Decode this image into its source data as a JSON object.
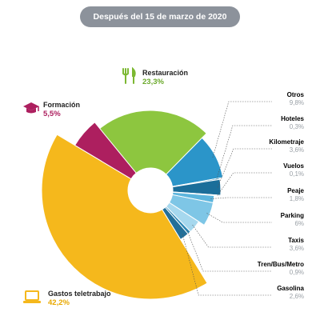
{
  "header": {
    "label": "Después del 15 de marzo de 2020",
    "color": "#8c929b"
  },
  "chart_data": {
    "type": "pie",
    "title": "Después del 15 de marzo de 2020",
    "slices": [
      {
        "name": "Restauración",
        "label": "23,3%",
        "value": 23.3,
        "color": "#8dc63f"
      },
      {
        "name": "Otros",
        "label": "9,8%",
        "value": 9.8,
        "color": "#2b95c9"
      },
      {
        "name": "Hoteles",
        "label": "0,3%",
        "value": 0.3,
        "color": "#1e7fb0"
      },
      {
        "name": "Kilometraje",
        "label": "3,6%",
        "value": 3.6,
        "color": "#1b6e9a"
      },
      {
        "name": "Vuelos",
        "label": "0,1%",
        "value": 0.1,
        "color": "#3aa0d2"
      },
      {
        "name": "Peaje",
        "label": "1,8%",
        "value": 1.8,
        "color": "#5cb5dd"
      },
      {
        "name": "Parking",
        "label": "6%",
        "value": 6.0,
        "color": "#7ec6e6"
      },
      {
        "name": "Taxis",
        "label": "3,6%",
        "value": 3.6,
        "color": "#a6d8ee"
      },
      {
        "name": "Tren/Bus/Metro",
        "label": "0,9%",
        "value": 0.9,
        "color": "#2a86b4"
      },
      {
        "name": "Gasolina",
        "label": "2,6%",
        "value": 2.6,
        "color": "#236f98"
      },
      {
        "name": "Gastos teletrabajo",
        "label": "42,2%",
        "value": 42.2,
        "color": "#f5b81c"
      },
      {
        "name": "Formación",
        "label": "5,5%",
        "value": 5.5,
        "color": "#ad1f5f"
      }
    ]
  },
  "icons": {
    "restauracion": "cutlery-icon",
    "formacion": "graduation-cap-icon",
    "teletrabajo": "laptop-icon"
  }
}
